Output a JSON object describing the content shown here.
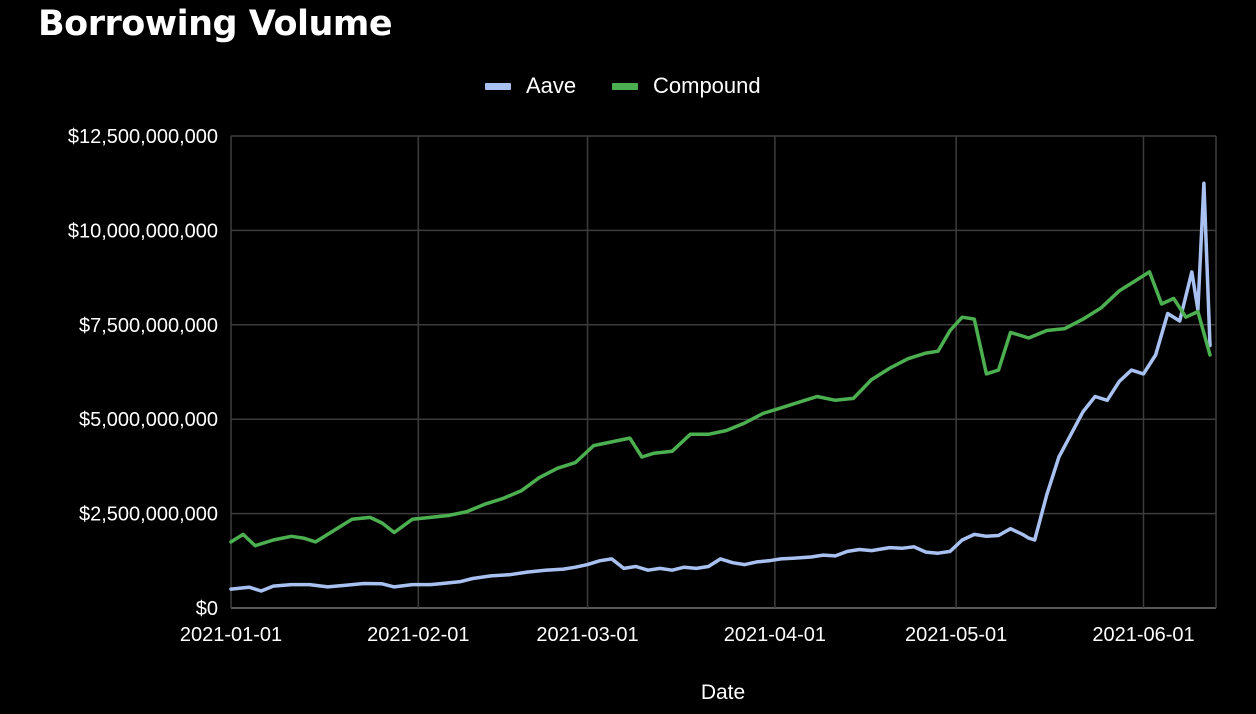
{
  "chart_data": {
    "type": "line",
    "title": "Borrowing Volume",
    "xlabel": "Date",
    "ylabel": "",
    "x_range": [
      "2021-01-01",
      "2021-06-13"
    ],
    "ylim": [
      0,
      12500000000
    ],
    "y_ticks": [
      {
        "value": 0,
        "label": "$0"
      },
      {
        "value": 2500000000,
        "label": "$2,500,000,000"
      },
      {
        "value": 5000000000,
        "label": "$5,000,000,000"
      },
      {
        "value": 7500000000,
        "label": "$7,500,000,000"
      },
      {
        "value": 10000000000,
        "label": "$10,000,000,000"
      },
      {
        "value": 12500000000,
        "label": "$12,500,000,000"
      }
    ],
    "x_ticks": [
      "2021-01-01",
      "2021-02-01",
      "2021-03-01",
      "2021-04-01",
      "2021-05-01",
      "2021-06-01"
    ],
    "grid": true,
    "legend_position": "top-center",
    "series": [
      {
        "name": "Aave",
        "color": "#a8c1f0",
        "points": [
          [
            "2021-01-01",
            500000000
          ],
          [
            "2021-01-04",
            550000000
          ],
          [
            "2021-01-06",
            450000000
          ],
          [
            "2021-01-08",
            580000000
          ],
          [
            "2021-01-11",
            620000000
          ],
          [
            "2021-01-14",
            620000000
          ],
          [
            "2021-01-17",
            560000000
          ],
          [
            "2021-01-20",
            600000000
          ],
          [
            "2021-01-23",
            650000000
          ],
          [
            "2021-01-26",
            640000000
          ],
          [
            "2021-01-28",
            560000000
          ],
          [
            "2021-01-31",
            620000000
          ],
          [
            "2021-02-03",
            620000000
          ],
          [
            "2021-02-05",
            650000000
          ],
          [
            "2021-02-08",
            700000000
          ],
          [
            "2021-02-10",
            780000000
          ],
          [
            "2021-02-13",
            850000000
          ],
          [
            "2021-02-16",
            880000000
          ],
          [
            "2021-02-19",
            950000000
          ],
          [
            "2021-02-22",
            1000000000
          ],
          [
            "2021-02-25",
            1030000000
          ],
          [
            "2021-02-27",
            1080000000
          ],
          [
            "2021-03-01",
            1150000000
          ],
          [
            "2021-03-03",
            1250000000
          ],
          [
            "2021-03-05",
            1300000000
          ],
          [
            "2021-03-07",
            1050000000
          ],
          [
            "2021-03-09",
            1100000000
          ],
          [
            "2021-03-11",
            1000000000
          ],
          [
            "2021-03-13",
            1050000000
          ],
          [
            "2021-03-15",
            1000000000
          ],
          [
            "2021-03-17",
            1080000000
          ],
          [
            "2021-03-19",
            1050000000
          ],
          [
            "2021-03-21",
            1100000000
          ],
          [
            "2021-03-23",
            1300000000
          ],
          [
            "2021-03-25",
            1200000000
          ],
          [
            "2021-03-27",
            1150000000
          ],
          [
            "2021-03-29",
            1220000000
          ],
          [
            "2021-03-31",
            1250000000
          ],
          [
            "2021-04-02",
            1300000000
          ],
          [
            "2021-04-04",
            1320000000
          ],
          [
            "2021-04-07",
            1350000000
          ],
          [
            "2021-04-09",
            1400000000
          ],
          [
            "2021-04-11",
            1380000000
          ],
          [
            "2021-04-13",
            1500000000
          ],
          [
            "2021-04-15",
            1550000000
          ],
          [
            "2021-04-17",
            1520000000
          ],
          [
            "2021-04-20",
            1600000000
          ],
          [
            "2021-04-22",
            1580000000
          ],
          [
            "2021-04-24",
            1620000000
          ],
          [
            "2021-04-26",
            1480000000
          ],
          [
            "2021-04-28",
            1450000000
          ],
          [
            "2021-04-30",
            1500000000
          ],
          [
            "2021-05-02",
            1800000000
          ],
          [
            "2021-05-04",
            1950000000
          ],
          [
            "2021-05-06",
            1900000000
          ],
          [
            "2021-05-08",
            1920000000
          ],
          [
            "2021-05-10",
            2100000000
          ],
          [
            "2021-05-12",
            1950000000
          ],
          [
            "2021-05-13",
            1850000000
          ],
          [
            "2021-05-14",
            1800000000
          ],
          [
            "2021-05-16",
            3000000000
          ],
          [
            "2021-05-18",
            4000000000
          ],
          [
            "2021-05-20",
            4600000000
          ],
          [
            "2021-05-22",
            5200000000
          ],
          [
            "2021-05-24",
            5600000000
          ],
          [
            "2021-05-26",
            5500000000
          ],
          [
            "2021-05-28",
            6000000000
          ],
          [
            "2021-05-30",
            6300000000
          ],
          [
            "2021-06-01",
            6200000000
          ],
          [
            "2021-06-03",
            6700000000
          ],
          [
            "2021-06-05",
            7800000000
          ],
          [
            "2021-06-07",
            7600000000
          ],
          [
            "2021-06-09",
            8900000000
          ],
          [
            "2021-06-10",
            7900000000
          ],
          [
            "2021-06-11",
            11250000000
          ],
          [
            "2021-06-12",
            6950000000
          ]
        ]
      },
      {
        "name": "Compound",
        "color": "#4caf50",
        "points": [
          [
            "2021-01-01",
            1750000000
          ],
          [
            "2021-01-03",
            1950000000
          ],
          [
            "2021-01-05",
            1650000000
          ],
          [
            "2021-01-08",
            1800000000
          ],
          [
            "2021-01-11",
            1900000000
          ],
          [
            "2021-01-13",
            1850000000
          ],
          [
            "2021-01-15",
            1750000000
          ],
          [
            "2021-01-18",
            2050000000
          ],
          [
            "2021-01-21",
            2350000000
          ],
          [
            "2021-01-24",
            2400000000
          ],
          [
            "2021-01-26",
            2250000000
          ],
          [
            "2021-01-28",
            2000000000
          ],
          [
            "2021-01-31",
            2350000000
          ],
          [
            "2021-02-03",
            2400000000
          ],
          [
            "2021-02-06",
            2450000000
          ],
          [
            "2021-02-09",
            2550000000
          ],
          [
            "2021-02-12",
            2750000000
          ],
          [
            "2021-02-15",
            2900000000
          ],
          [
            "2021-02-18",
            3100000000
          ],
          [
            "2021-02-21",
            3450000000
          ],
          [
            "2021-02-24",
            3700000000
          ],
          [
            "2021-02-27",
            3850000000
          ],
          [
            "2021-03-02",
            4300000000
          ],
          [
            "2021-03-05",
            4400000000
          ],
          [
            "2021-03-08",
            4500000000
          ],
          [
            "2021-03-10",
            4000000000
          ],
          [
            "2021-03-12",
            4100000000
          ],
          [
            "2021-03-15",
            4150000000
          ],
          [
            "2021-03-18",
            4600000000
          ],
          [
            "2021-03-21",
            4600000000
          ],
          [
            "2021-03-24",
            4700000000
          ],
          [
            "2021-03-27",
            4900000000
          ],
          [
            "2021-03-30",
            5150000000
          ],
          [
            "2021-04-02",
            5300000000
          ],
          [
            "2021-04-05",
            5450000000
          ],
          [
            "2021-04-08",
            5600000000
          ],
          [
            "2021-04-11",
            5500000000
          ],
          [
            "2021-04-14",
            5550000000
          ],
          [
            "2021-04-17",
            6050000000
          ],
          [
            "2021-04-20",
            6350000000
          ],
          [
            "2021-04-23",
            6600000000
          ],
          [
            "2021-04-26",
            6750000000
          ],
          [
            "2021-04-28",
            6800000000
          ],
          [
            "2021-04-30",
            7350000000
          ],
          [
            "2021-05-02",
            7700000000
          ],
          [
            "2021-05-04",
            7650000000
          ],
          [
            "2021-05-06",
            6200000000
          ],
          [
            "2021-05-08",
            6300000000
          ],
          [
            "2021-05-10",
            7300000000
          ],
          [
            "2021-05-13",
            7150000000
          ],
          [
            "2021-05-16",
            7350000000
          ],
          [
            "2021-05-19",
            7400000000
          ],
          [
            "2021-05-22",
            7650000000
          ],
          [
            "2021-05-25",
            7950000000
          ],
          [
            "2021-05-28",
            8400000000
          ],
          [
            "2021-05-31",
            8700000000
          ],
          [
            "2021-06-02",
            8900000000
          ],
          [
            "2021-06-04",
            8050000000
          ],
          [
            "2021-06-06",
            8200000000
          ],
          [
            "2021-06-08",
            7700000000
          ],
          [
            "2021-06-10",
            7850000000
          ],
          [
            "2021-06-12",
            6700000000
          ]
        ]
      }
    ]
  }
}
